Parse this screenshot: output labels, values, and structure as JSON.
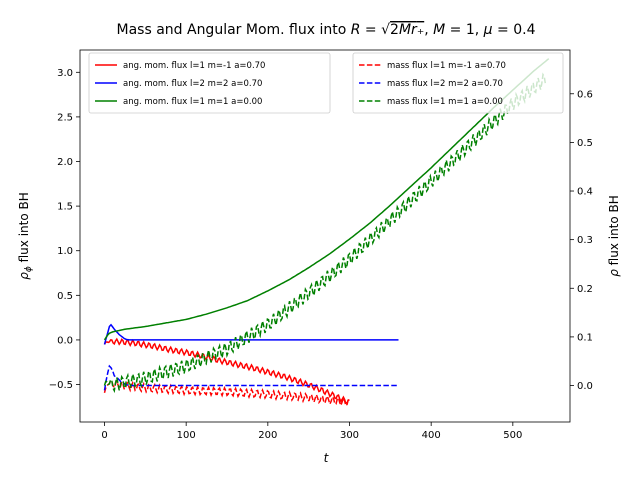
{
  "chart_data": {
    "type": "line",
    "title": "Mass and Angular Mom. flux into R=√(2Mr₊), M=1, μ=0.4",
    "xlabel": "t",
    "ylabel_left": "ρ_φ flux into BH",
    "ylabel_right": "ρ flux into BH",
    "xlim": [
      -30,
      570
    ],
    "ylim_left": [
      -0.92,
      3.25
    ],
    "ylim_right": [
      -0.075,
      0.69
    ],
    "x_ticks": [
      "0",
      "100",
      "200",
      "300",
      "400",
      "500"
    ],
    "y_left_ticks": [
      "-0.5",
      "0.0",
      "0.5",
      "1.0",
      "1.5",
      "2.0",
      "2.5",
      "3.0"
    ],
    "y_right_ticks": [
      "0.0",
      "0.1",
      "0.2",
      "0.3",
      "0.4",
      "0.5",
      "0.6"
    ],
    "grid": false,
    "legend_left": {
      "placement": "top-left",
      "entries": [
        "ang. mom. flux l=1 m=-1 a=0.70",
        "ang. mom. flux l=2 m=2 a=0.70",
        "ang. mom. flux l=1 m=1 a=0.00"
      ]
    },
    "legend_right": {
      "placement": "top-right",
      "entries": [
        "mass flux l=1 m=-1 a=0.70",
        "mass flux l=2 m=2 a=0.70",
        "mass flux l=1 m=1 a=0.00"
      ]
    },
    "series": [
      {
        "name": "ang. mom. flux l=1 m=-1 a=0.70",
        "axis": "left",
        "style": "solid",
        "color": "#ff0000",
        "x": [
          0,
          5,
          10,
          20,
          40,
          60,
          80,
          100,
          120,
          140,
          160,
          180,
          200,
          220,
          240,
          260,
          280,
          300
        ],
        "y": [
          -0.05,
          -0.01,
          -0.02,
          -0.02,
          -0.04,
          -0.07,
          -0.11,
          -0.14,
          -0.18,
          -0.23,
          -0.27,
          -0.31,
          -0.36,
          -0.41,
          -0.47,
          -0.54,
          -0.62,
          -0.7
        ],
        "oscillation_amplitude": 0.03
      },
      {
        "name": "ang. mom. flux l=2 m=2 a=0.70",
        "axis": "left",
        "style": "solid",
        "color": "#0000ff",
        "x": [
          0,
          3,
          6,
          8,
          12,
          18,
          25,
          30,
          40,
          360
        ],
        "y": [
          -0.05,
          0.05,
          0.15,
          0.17,
          0.12,
          0.06,
          0.01,
          0.0,
          0.0,
          0.0
        ]
      },
      {
        "name": "ang. mom. flux l=1 m=1 a=0.00",
        "axis": "left",
        "style": "solid",
        "color": "#008000",
        "x": [
          0,
          5,
          10,
          25,
          50,
          75,
          100,
          125,
          150,
          175,
          200,
          225,
          250,
          275,
          300,
          325,
          350,
          375,
          400,
          425,
          450,
          475,
          500,
          525,
          545
        ],
        "y": [
          0.0,
          0.07,
          0.09,
          0.12,
          0.15,
          0.19,
          0.23,
          0.29,
          0.36,
          0.44,
          0.55,
          0.67,
          0.81,
          0.96,
          1.13,
          1.31,
          1.51,
          1.72,
          1.93,
          2.15,
          2.37,
          2.59,
          2.8,
          3.01,
          3.16
        ]
      },
      {
        "name": "mass flux l=1 m=-1 a=0.70",
        "axis": "right",
        "style": "dashed",
        "color": "#ff0000",
        "x": [
          0,
          5,
          10,
          20,
          50,
          100,
          150,
          200,
          250,
          275,
          300
        ],
        "y": [
          -0.015,
          0.008,
          0.003,
          0.0,
          -0.005,
          -0.01,
          -0.013,
          -0.018,
          -0.025,
          -0.03,
          -0.035
        ],
        "oscillation_amplitude": 0.008
      },
      {
        "name": "mass flux l=2 m=2 a=0.70",
        "axis": "right",
        "style": "dashed",
        "color": "#0000ff",
        "x": [
          0,
          3,
          6,
          9,
          12,
          16,
          20,
          25,
          30,
          40,
          360
        ],
        "y": [
          -0.01,
          0.02,
          0.04,
          0.035,
          0.02,
          0.015,
          0.008,
          0.003,
          0.0,
          0.0,
          0.0
        ]
      },
      {
        "name": "mass flux l=1 m=1 a=0.00",
        "axis": "right",
        "style": "dashed",
        "color": "#008000",
        "x": [
          0,
          5,
          10,
          20,
          50,
          100,
          150,
          200,
          250,
          300,
          350,
          400,
          450,
          500,
          540
        ],
        "y": [
          0.0,
          0.01,
          0.0,
          0.005,
          0.015,
          0.04,
          0.075,
          0.125,
          0.19,
          0.26,
          0.34,
          0.42,
          0.5,
          0.58,
          0.63
        ],
        "oscillation_amplitude": 0.014
      }
    ]
  }
}
